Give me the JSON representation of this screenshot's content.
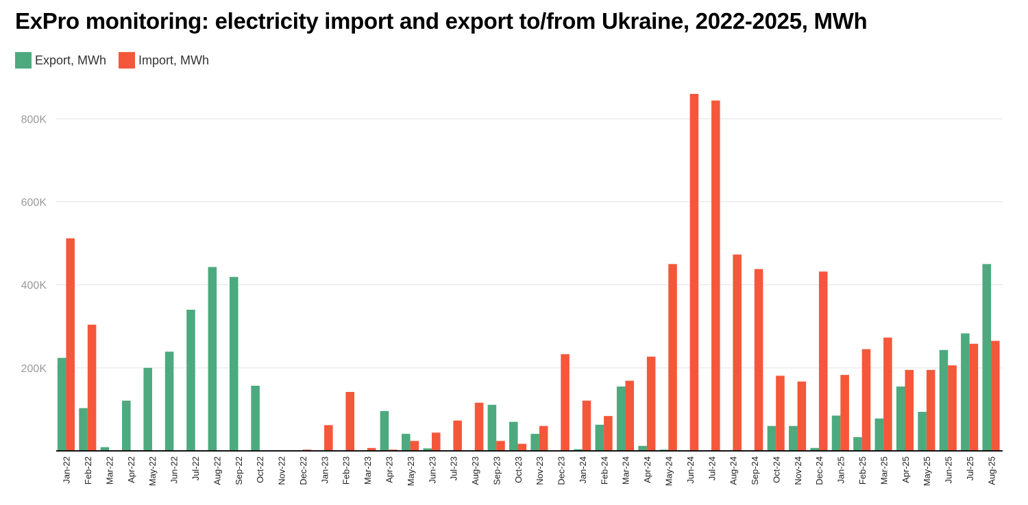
{
  "title": "ExPro monitoring: electricity import and export to/from Ukraine, 2022-2025, MWh",
  "legend": {
    "export_label": "Export, MWh",
    "import_label": "Import, MWh",
    "export_color": "#4caa7e",
    "import_color": "#f5573a"
  },
  "chart_data": {
    "type": "bar",
    "title": "ExPro monitoring: electricity import and export to/from Ukraine, 2022-2025, MWh",
    "xlabel": "",
    "ylabel": "",
    "ylim": [
      0,
      860000
    ],
    "yticks": [
      200000,
      400000,
      600000,
      800000
    ],
    "ytick_labels": [
      "200K",
      "400K",
      "600K",
      "800K"
    ],
    "grid": true,
    "legend_position": "top-left",
    "categories": [
      "Jan-22",
      "Feb-22",
      "Mar-22",
      "Apr-22",
      "May-22",
      "Jun-22",
      "Jul-22",
      "Aug-22",
      "Sep-22",
      "Oct-22",
      "Nov-22",
      "Dec-22",
      "Jan-23",
      "Feb-23",
      "Mar-23",
      "Apr-23",
      "May-23",
      "Jun-23",
      "Jul-23",
      "Aug-23",
      "Sep-23",
      "Oct-23",
      "Nov-23",
      "Dec-23",
      "Jan-24",
      "Feb-24",
      "Mar-24",
      "Apr-24",
      "May-24",
      "Jun-24",
      "Jul-24",
      "Aug-24",
      "Sep-24",
      "Oct-24",
      "Nov-24",
      "Dec-24",
      "Jan-25",
      "Feb-25",
      "Mar-25",
      "Apr-25",
      "May-25",
      "Jun-25",
      "Jul-25",
      "Aug-25"
    ],
    "series": [
      {
        "name": "Export, MWh",
        "color": "#4caa7e",
        "values": [
          224000,
          103000,
          9000,
          121000,
          200000,
          239000,
          340000,
          443000,
          419000,
          157000,
          0,
          0,
          0,
          0,
          0,
          96000,
          41000,
          6000,
          0,
          0,
          111000,
          70000,
          41000,
          0,
          4000,
          63000,
          155000,
          12000,
          3000,
          0,
          0,
          0,
          0,
          60000,
          60000,
          7000,
          85000,
          33000,
          78000,
          155000,
          94000,
          243000,
          283000,
          450000
        ]
      },
      {
        "name": "Import, MWh",
        "color": "#f5573a",
        "values": [
          512000,
          304000,
          0,
          0,
          0,
          0,
          0,
          0,
          0,
          0,
          0,
          3000,
          62000,
          142000,
          7000,
          3000,
          24000,
          44000,
          73000,
          116000,
          24000,
          17000,
          60000,
          233000,
          121000,
          84000,
          169000,
          227000,
          450000,
          860000,
          844000,
          473000,
          438000,
          181000,
          167000,
          432000,
          183000,
          245000,
          273000,
          195000,
          195000,
          206000,
          258000,
          265000
        ]
      }
    ]
  }
}
